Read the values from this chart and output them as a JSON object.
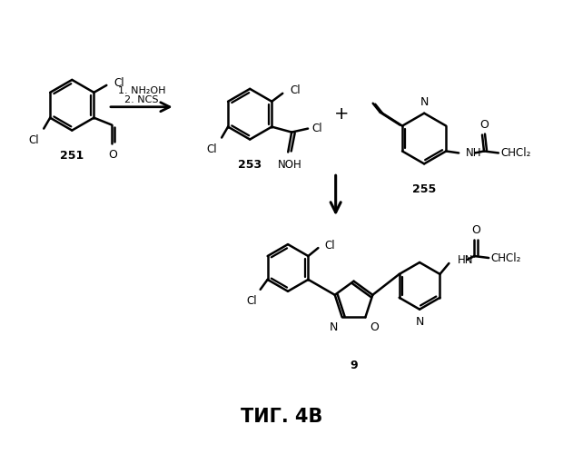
{
  "background_color": "#ffffff",
  "line_color": "#000000",
  "line_width": 1.8,
  "fig_label": "ΤИГ. 4В",
  "compound_labels": [
    "251",
    "253",
    "255",
    "9"
  ],
  "conditions": [
    "1. NH₂OH",
    "2. NCS"
  ]
}
